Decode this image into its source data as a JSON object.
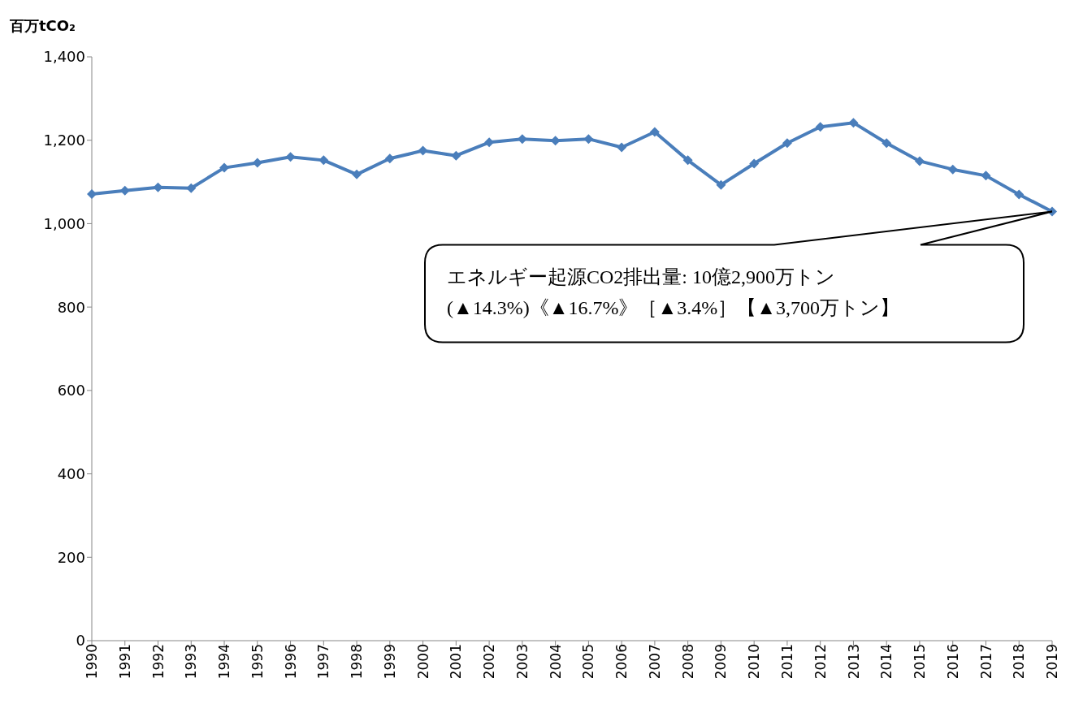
{
  "chart_data": {
    "type": "line",
    "ylabel": "百万tCO₂",
    "categories": [
      "1990",
      "1991",
      "1992",
      "1993",
      "1994",
      "1995",
      "1996",
      "1997",
      "1998",
      "1999",
      "2000",
      "2001",
      "2002",
      "2003",
      "2004",
      "2005",
      "2006",
      "2007",
      "2008",
      "2009",
      "2010",
      "2011",
      "2012",
      "2013",
      "2014",
      "2015",
      "2016",
      "2017",
      "2018",
      "2019"
    ],
    "series": [
      {
        "color": "#4a7ebb",
        "values": [
          1071,
          1079,
          1087,
          1085,
          1134,
          1146,
          1160,
          1152,
          1118,
          1156,
          1175,
          1163,
          1195,
          1203,
          1199,
          1203,
          1183,
          1220,
          1152,
          1093,
          1144,
          1193,
          1232,
          1242,
          1193,
          1150,
          1130,
          1115,
          1070,
          1029
        ]
      }
    ],
    "ylim": [
      0,
      1400
    ],
    "yticks": [
      {
        "value": 0,
        "label": "0"
      },
      {
        "value": 200,
        "label": "200"
      },
      {
        "value": 400,
        "label": "400"
      },
      {
        "value": 600,
        "label": "600"
      },
      {
        "value": 800,
        "label": "800"
      },
      {
        "value": 1000,
        "label": "1,000"
      },
      {
        "value": 1200,
        "label": "1,200"
      },
      {
        "value": 1400,
        "label": "1,400"
      }
    ],
    "grid": false,
    "legend": false,
    "marker": "diamond",
    "line_style": "solid",
    "annotations": [
      "エネルギー起源CO2排出量: 10億2,900万トン\n(▲14.3%)《▲16.7%》［▲3.4%］【▲3,700万トン】"
    ]
  }
}
